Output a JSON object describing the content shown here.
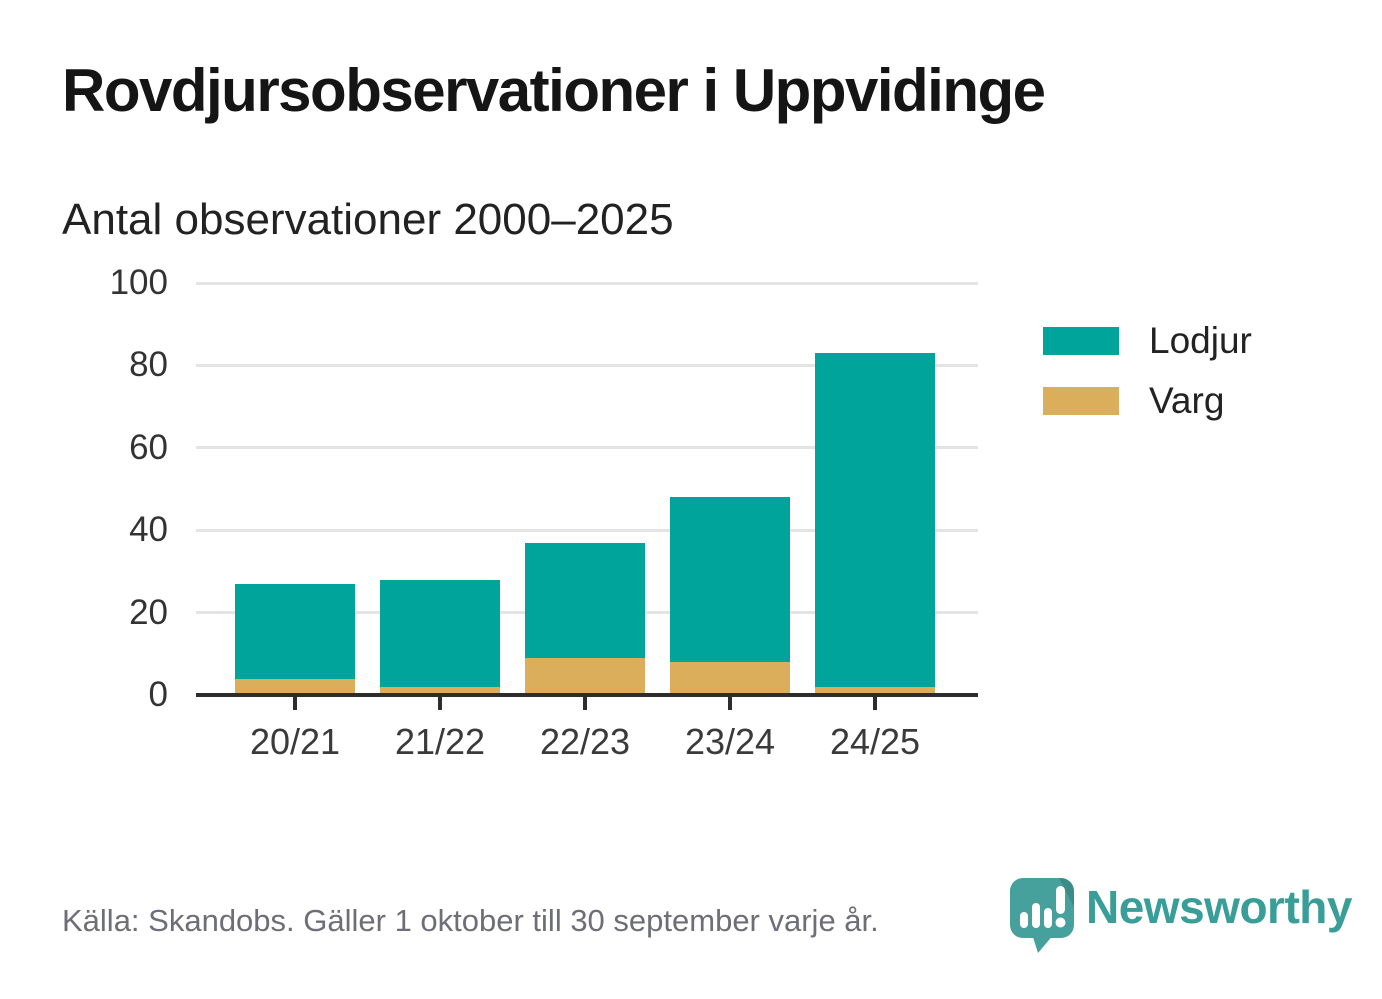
{
  "title": "Rovdjursobservationer i Uppvidinge",
  "subtitle": "Antal observationer 2000–2025",
  "colors": {
    "lodjur": "#00a49a",
    "varg": "#dbae5c",
    "grid": "#e4e4e4",
    "axis": "#2d2d2d",
    "axis_text": "#333333",
    "title_text": "#151515",
    "muted_text": "#6e6e78",
    "brand_text": "#399e97",
    "logo_fill": "#46a09b"
  },
  "chart_data": {
    "type": "bar",
    "stacked": true,
    "title": "Rovdjursobservationer i Uppvidinge",
    "subtitle": "Antal observationer 2000–2025",
    "categories": [
      "20/21",
      "21/22",
      "22/23",
      "23/24",
      "24/25"
    ],
    "series": [
      {
        "name": "Lodjur",
        "color": "#00a49a",
        "values": [
          23,
          26,
          28,
          40,
          81
        ]
      },
      {
        "name": "Varg",
        "color": "#dbae5c",
        "values": [
          4,
          2,
          9,
          8,
          2
        ]
      }
    ],
    "stack_order_bottom_up": [
      "Varg",
      "Lodjur"
    ],
    "totals": [
      27,
      28,
      37,
      48,
      83
    ],
    "xlabel": "",
    "ylabel": "",
    "ylim": [
      0,
      100
    ],
    "yticks": [
      0,
      20,
      40,
      60,
      80,
      100
    ],
    "grid": true,
    "legend_position": "right"
  },
  "legend": {
    "items": [
      {
        "label": "Lodjur",
        "color": "#00a49a"
      },
      {
        "label": "Varg",
        "color": "#dbae5c"
      }
    ]
  },
  "footer": {
    "source": "Källa: Skandobs. Gäller 1 oktober till 30 september varje år.",
    "brand": "Newsworthy"
  }
}
